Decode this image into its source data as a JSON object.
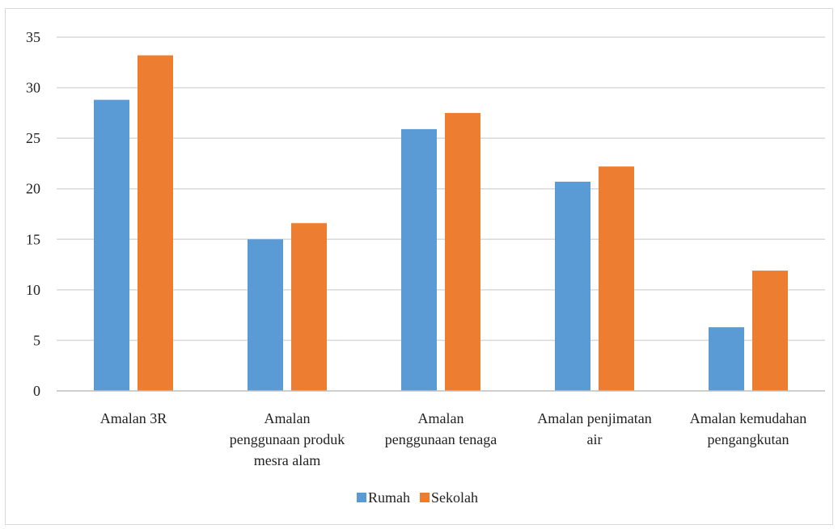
{
  "chart_data": {
    "type": "bar",
    "categories": [
      [
        "Amalan 3R"
      ],
      [
        "Amalan",
        "penggunaan produk",
        "mesra alam"
      ],
      [
        "Amalan",
        "penggunaan tenaga"
      ],
      [
        "Amalan penjimatan",
        "air"
      ],
      [
        "Amalan kemudahan",
        "pengangkutan"
      ]
    ],
    "series": [
      {
        "name": "Rumah",
        "values": [
          28.8,
          15.0,
          25.9,
          20.7,
          6.3
        ],
        "color": "#5b9bd5"
      },
      {
        "name": "Sekolah",
        "values": [
          33.2,
          16.6,
          27.5,
          22.2,
          11.9
        ],
        "color": "#ed7d31"
      }
    ],
    "ylim": [
      0,
      35
    ],
    "yticks": [
      "0",
      "5",
      "10",
      "15",
      "20",
      "25",
      "30",
      "35"
    ],
    "grid": true,
    "legend": "bottom-center"
  }
}
